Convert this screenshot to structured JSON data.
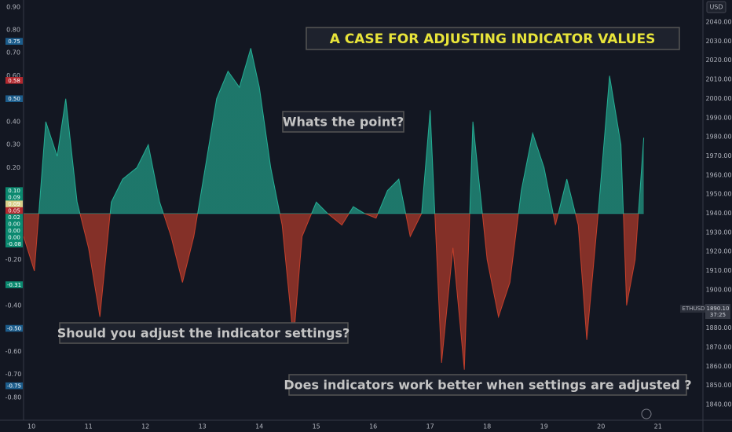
{
  "chart_data": {
    "type": "area",
    "annotations": {
      "title": "A CASE FOR ADJUSTING INDICATOR VALUES",
      "q1": "Whats the point?",
      "q2": "Should you adjust the indicator settings?",
      "q3": "Does indicators work better when settings are adjusted ?"
    },
    "currency": "USD",
    "x": [
      9.86,
      10.05,
      10.25,
      10.45,
      10.6,
      10.8,
      11.0,
      11.2,
      11.4,
      11.6,
      11.85,
      12.05,
      12.25,
      12.45,
      12.65,
      12.85,
      13.05,
      13.25,
      13.45,
      13.65,
      13.85,
      14.0,
      14.2,
      14.4,
      14.6,
      14.75,
      15.0,
      15.2,
      15.45,
      15.65,
      15.85,
      16.05,
      16.25,
      16.45,
      16.65,
      16.85,
      17.0,
      17.2,
      17.4,
      17.6,
      17.75,
      18.0,
      18.2,
      18.4,
      18.6,
      18.8,
      19.0,
      19.2,
      19.4,
      19.6,
      19.75,
      19.95,
      20.15,
      20.35,
      20.45,
      20.6,
      20.75
    ],
    "values": [
      -0.1,
      -0.25,
      0.4,
      0.25,
      0.5,
      0.05,
      -0.15,
      -0.45,
      0.05,
      0.15,
      0.2,
      0.3,
      0.05,
      -0.1,
      -0.3,
      -0.1,
      0.2,
      0.5,
      0.62,
      0.55,
      0.72,
      0.55,
      0.2,
      -0.05,
      -0.55,
      -0.1,
      0.05,
      0.0,
      -0.05,
      0.03,
      0.0,
      -0.02,
      0.1,
      0.15,
      -0.1,
      0.0,
      0.45,
      -0.65,
      -0.15,
      -0.68,
      0.4,
      -0.2,
      -0.45,
      -0.3,
      0.1,
      0.35,
      0.2,
      -0.05,
      0.15,
      -0.05,
      -0.55,
      0.0,
      0.6,
      0.3,
      -0.4,
      -0.2,
      0.33
    ],
    "positive_color": "#26c6a6",
    "negative_color": "#e0452c",
    "xlim": [
      9.86,
      21.79
    ],
    "xticks": [
      10,
      11,
      12,
      13,
      14,
      15,
      16,
      17,
      18,
      19,
      20,
      21
    ],
    "ylim": [
      -0.9,
      0.93
    ],
    "yticks": [
      {
        "value": 0.9,
        "label": "0.90"
      },
      {
        "value": 0.8,
        "label": "0.80"
      },
      {
        "value": 0.7,
        "label": "0.70"
      },
      {
        "value": 0.6,
        "label": "0.60"
      },
      {
        "value": 0.4,
        "label": "0.40"
      },
      {
        "value": 0.3,
        "label": "0.30"
      },
      {
        "value": 0.2,
        "label": "0.20"
      },
      {
        "value": -0.2,
        "label": "-0.20"
      },
      {
        "value": -0.4,
        "label": "-0.40"
      },
      {
        "value": -0.6,
        "label": "-0.60"
      },
      {
        "value": -0.7,
        "label": "-0.70"
      },
      {
        "value": -0.8,
        "label": "-0.80"
      }
    ],
    "y2lim": [
      1831.8,
      2051.5
    ],
    "y2ticks": [
      {
        "value": 2040,
        "label": "2040.00"
      },
      {
        "value": 2030,
        "label": "2030.00"
      },
      {
        "value": 2020,
        "label": "2020.00"
      },
      {
        "value": 2010,
        "label": "2010.00"
      },
      {
        "value": 2000,
        "label": "2000.00"
      },
      {
        "value": 1990,
        "label": "1990.00"
      },
      {
        "value": 1980,
        "label": "1980.00"
      },
      {
        "value": 1970,
        "label": "1970.00"
      },
      {
        "value": 1960,
        "label": "1960.00"
      },
      {
        "value": 1950,
        "label": "1950.00"
      },
      {
        "value": 1940,
        "label": "1940.00"
      },
      {
        "value": 1930,
        "label": "1930.00"
      },
      {
        "value": 1920,
        "label": "1920.00"
      },
      {
        "value": 1910,
        "label": "1910.00"
      },
      {
        "value": 1900,
        "label": "1900.00"
      },
      {
        "value": 1880,
        "label": "1880.00"
      },
      {
        "value": 1870,
        "label": "1870.00"
      },
      {
        "value": 1860,
        "label": "1860.00"
      },
      {
        "value": 1850,
        "label": "1850.00"
      },
      {
        "value": 1840,
        "label": "1840.00"
      }
    ],
    "badges": [
      {
        "value": 0.75,
        "label": "0.75",
        "color": "#1c5d8c"
      },
      {
        "value": 0.58,
        "label": "0.58",
        "color": "#b2282e"
      },
      {
        "value": 0.5,
        "label": "0.50",
        "color": "#1c5d8c"
      },
      {
        "value": 0.1,
        "label": "0.10",
        "color": "#0b8a70"
      },
      {
        "value": 0.09,
        "label": "0.09",
        "color": "#0b8a70"
      },
      {
        "value": 0.09,
        "label": "0.09",
        "color": "#d8d08a"
      },
      {
        "value": 0.05,
        "label": "0.05",
        "color": "#b2282e"
      },
      {
        "value": 0.02,
        "label": "0.02",
        "color": "#0b8a70"
      },
      {
        "value": 0.0,
        "label": "0.00",
        "color": "#0b8a70"
      },
      {
        "value": 0.0,
        "label": "0.00",
        "color": "#0b8a70"
      },
      {
        "value": 0.0,
        "label": "0.00",
        "color": "#0b8a70"
      },
      {
        "value": -0.08,
        "label": "-0.08",
        "color": "#0b8a70"
      },
      {
        "value": -0.31,
        "label": "-0.31",
        "color": "#0b8a70"
      },
      {
        "value": -0.5,
        "label": "-0.50",
        "color": "#1c5d8c"
      },
      {
        "value": -0.75,
        "label": "-0.75",
        "color": "#1c5d8c"
      }
    ],
    "price": {
      "symbol": "ETHUSD",
      "value": 1890.1,
      "value_label": "1890.10",
      "countdown": "37:25"
    }
  }
}
